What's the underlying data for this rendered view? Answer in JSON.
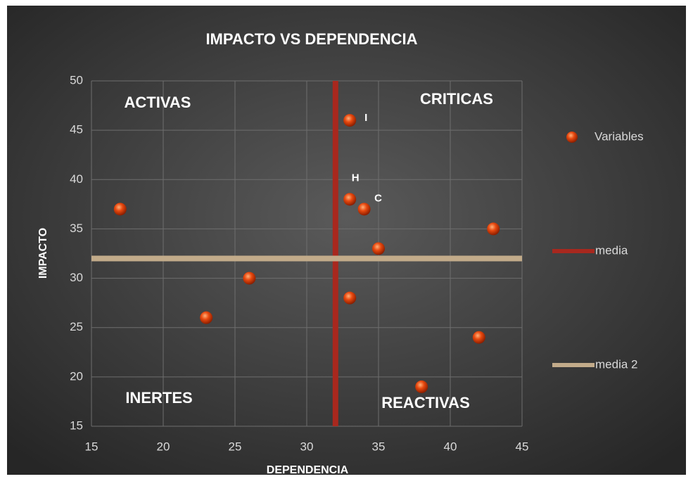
{
  "chart_data": {
    "type": "scatter",
    "title": "IMPACTO VS DEPENDENCIA",
    "x_label": "DEPENDENCIA",
    "y_label": "IMPACTO",
    "xlim": [
      15,
      45
    ],
    "ylim": [
      15,
      50
    ],
    "xticks": [
      15,
      20,
      25,
      30,
      35,
      40,
      45
    ],
    "yticks": [
      15,
      20,
      25,
      30,
      35,
      40,
      45,
      50
    ],
    "grid": true,
    "legend": "right",
    "annotations": [
      "ACTIVAS",
      "CRITICAS",
      "INERTES",
      "REACTIVAS"
    ],
    "series": [
      {
        "name": "Variables",
        "type": "scatter",
        "color": "#e8490f",
        "x": [
          17,
          23,
          26,
          33,
          33,
          34,
          35,
          33,
          43,
          42,
          38
        ],
        "y": [
          37,
          26,
          30,
          46,
          38,
          37,
          33,
          28,
          35,
          24,
          19
        ],
        "labels": [
          null,
          null,
          null,
          "I",
          "H",
          "C",
          null,
          null,
          null,
          null,
          null
        ]
      },
      {
        "name": "media",
        "type": "line",
        "color": "#a8281e",
        "x": [
          32,
          32
        ],
        "y": [
          15,
          50
        ]
      },
      {
        "name": "media 2",
        "type": "line",
        "color": "#c2ab8a",
        "x": [
          15,
          45
        ],
        "y": [
          32,
          32
        ]
      }
    ]
  }
}
